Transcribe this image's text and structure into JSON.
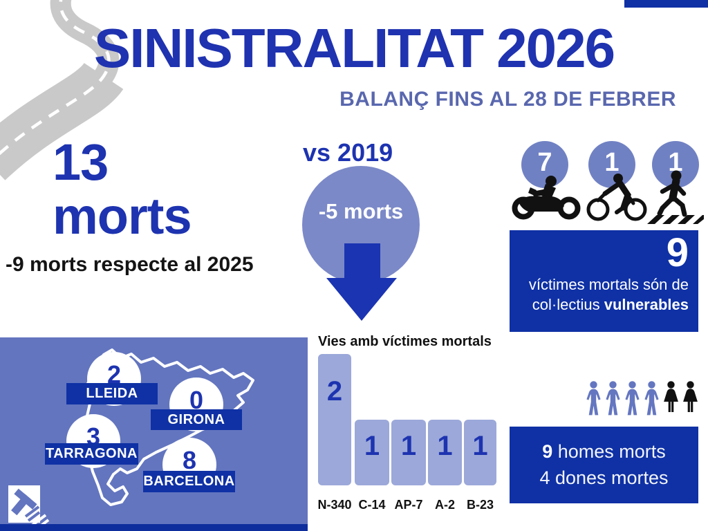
{
  "header": {
    "title": "SINISTRALITAT 2026",
    "subtitle": "BALANÇ FINS AL 28 DE FEBRER"
  },
  "summary": {
    "big_number": "13",
    "big_label": "morts",
    "comparison_2025": "-9 morts respecte al 2025"
  },
  "vs2019": {
    "label": "vs 2019",
    "delta": "-5 morts"
  },
  "vulnerable": {
    "counts": [
      {
        "type": "motorcyclist",
        "value": "7"
      },
      {
        "type": "cyclist",
        "value": "1"
      },
      {
        "type": "pedestrian",
        "value": "1"
      }
    ],
    "total": "9",
    "text_line1": "víctimes mortals són de",
    "text_line2_normal": "col·lectius ",
    "text_line2_bold": "vulnerables"
  },
  "map": {
    "regions": [
      {
        "name": "LLEIDA",
        "value": "2"
      },
      {
        "name": "GIRONA",
        "value": "0"
      },
      {
        "name": "TARRAGONA",
        "value": "3"
      },
      {
        "name": "BARCELONA",
        "value": "8"
      }
    ]
  },
  "chart_data": {
    "type": "bar",
    "title": "Vies amb víctimes mortals",
    "categories": [
      "N-340",
      "C-14",
      "AP-7",
      "A-2",
      "B-23"
    ],
    "values": [
      2,
      1,
      1,
      1,
      1
    ],
    "xlabel": "",
    "ylabel": "",
    "ylim": [
      0,
      2
    ],
    "grid": false,
    "legend": false,
    "bar_color": "#9ba8d9",
    "value_label_color": "#1d33b0"
  },
  "gender": {
    "pictogram": {
      "male_icons": 4,
      "female_icons": 2
    },
    "line1_bold": "9",
    "line1_rest": " homes morts",
    "line2": "4 dones mortes"
  },
  "colors": {
    "dark_navy": "#0f31a5",
    "title_blue": "#1f32b0",
    "panel_blue": "#6375bf",
    "circle_blue": "#7b89c8",
    "stat_circle_blue": "#7081c3",
    "bar_light_blue": "#9ba8d9",
    "subtitle_blue": "#5967ae",
    "road_gray": "#c9c9c9"
  }
}
